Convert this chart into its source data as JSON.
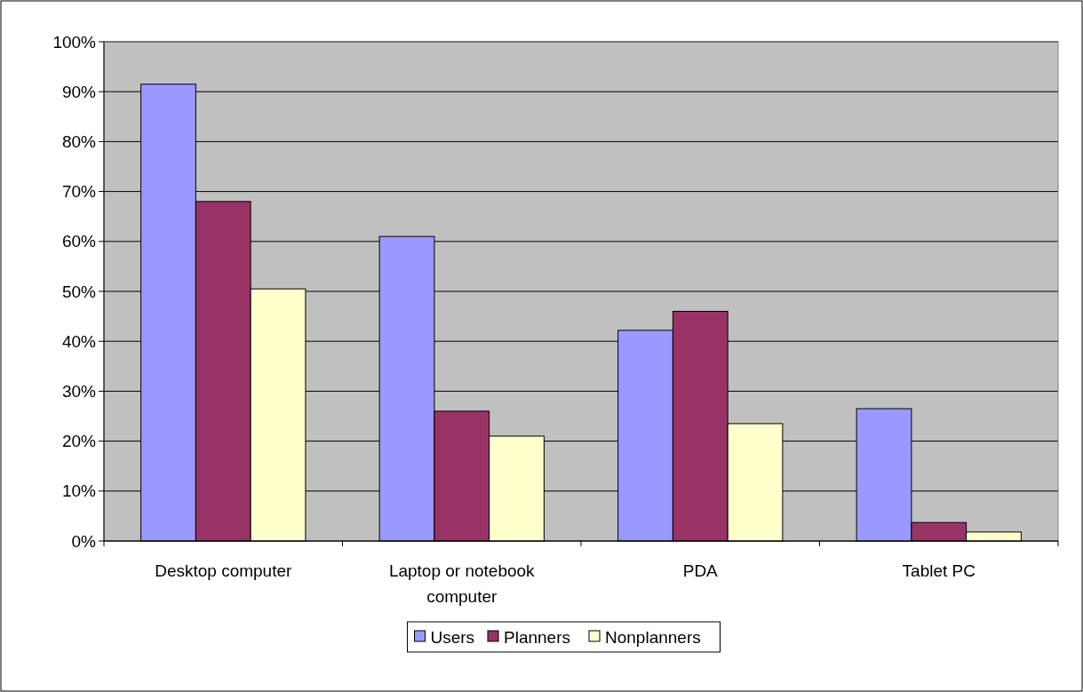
{
  "chart_data": {
    "type": "bar",
    "categories": [
      "Desktop computer",
      "Laptop or notebook computer",
      "PDA",
      "Tablet PC"
    ],
    "series": [
      {
        "name": "Users",
        "color": "#9999ff",
        "values": [
          91.5,
          61,
          42.2,
          26.5
        ]
      },
      {
        "name": "Planners",
        "color": "#993366",
        "values": [
          68,
          26,
          46,
          3.7
        ]
      },
      {
        "name": "Nonplanners",
        "color": "#ffffcc",
        "values": [
          50.5,
          21,
          23.5,
          1.8
        ]
      }
    ],
    "ylim": [
      0,
      100
    ],
    "yticks": [
      {
        "value": 0,
        "label": "0%"
      },
      {
        "value": 10,
        "label": "10%"
      },
      {
        "value": 20,
        "label": "20%"
      },
      {
        "value": 30,
        "label": "30%"
      },
      {
        "value": 40,
        "label": "40%"
      },
      {
        "value": 50,
        "label": "50%"
      },
      {
        "value": 60,
        "label": "60%"
      },
      {
        "value": 70,
        "label": "70%"
      },
      {
        "value": 80,
        "label": "80%"
      },
      {
        "value": 90,
        "label": "90%"
      },
      {
        "value": 100,
        "label": "100%"
      }
    ],
    "grid": "y",
    "legend": "bottom"
  }
}
